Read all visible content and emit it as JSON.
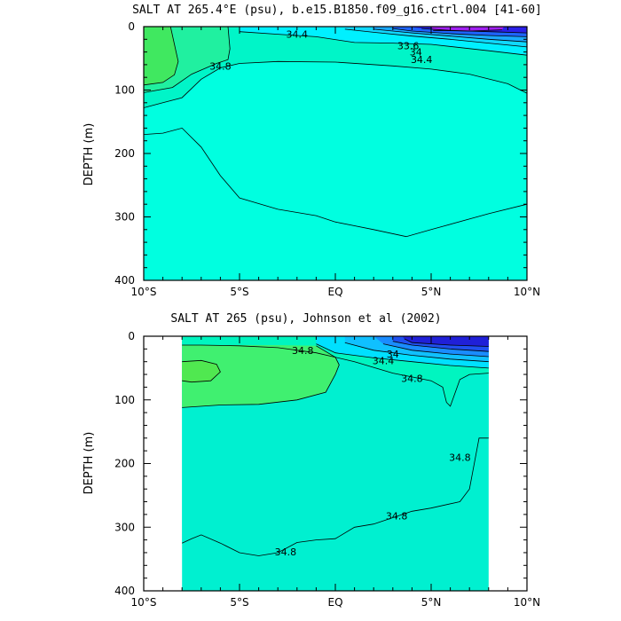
{
  "chart_data": [
    {
      "type": "contour",
      "title": "SALT AT 265.4°E (psu), b.e15.B1850.f09_g16.ctrl.004 [41-60]",
      "xlabel": "",
      "ylabel": "DEPTH (m)",
      "xlim": [
        -10,
        10
      ],
      "ylim": [
        400,
        0
      ],
      "x_ticks": [
        -10,
        -5,
        0,
        5,
        10
      ],
      "x_tick_labels": [
        "10°S",
        "5°S",
        "EQ",
        "5°N",
        "10°N"
      ],
      "y_ticks": [
        0,
        100,
        200,
        300,
        400
      ],
      "y_tick_labels": [
        "0",
        "100",
        "200",
        "300",
        "400"
      ],
      "data_lon_range": [
        -10,
        10
      ],
      "contour_labels": [
        {
          "text": "34.4",
          "lat": -2,
          "depth": 12
        },
        {
          "text": "34.8",
          "lat": -6,
          "depth": 62
        },
        {
          "text": "33.6",
          "lat": 3.8,
          "depth": 30
        },
        {
          "text": "34",
          "lat": 4.2,
          "depth": 40
        },
        {
          "text": "34.4",
          "lat": 4.5,
          "depth": 52
        }
      ]
    },
    {
      "type": "contour",
      "title": "SALT AT 265 (psu), Johnson et al (2002)",
      "xlabel": "",
      "ylabel": "DEPTH (m)",
      "xlim": [
        -10,
        10
      ],
      "ylim": [
        400,
        0
      ],
      "x_ticks": [
        -10,
        -5,
        0,
        5,
        10
      ],
      "x_tick_labels": [
        "10°S",
        "5°S",
        "EQ",
        "5°N",
        "10°N"
      ],
      "y_ticks": [
        0,
        100,
        200,
        300,
        400
      ],
      "y_tick_labels": [
        "0",
        "100",
        "200",
        "300",
        "400"
      ],
      "data_lon_range": [
        -8,
        8
      ],
      "contour_labels": [
        {
          "text": "34.8",
          "lat": -1.7,
          "depth": 22
        },
        {
          "text": "34",
          "lat": 3,
          "depth": 28
        },
        {
          "text": "34.4",
          "lat": 2.5,
          "depth": 38
        },
        {
          "text": "34.8",
          "lat": 4,
          "depth": 66
        },
        {
          "text": "34.8",
          "lat": 3.2,
          "depth": 282
        },
        {
          "text": "34.8",
          "lat": -2.6,
          "depth": 339
        },
        {
          "text": "34.8",
          "lat": 6.5,
          "depth": 190
        }
      ]
    }
  ]
}
